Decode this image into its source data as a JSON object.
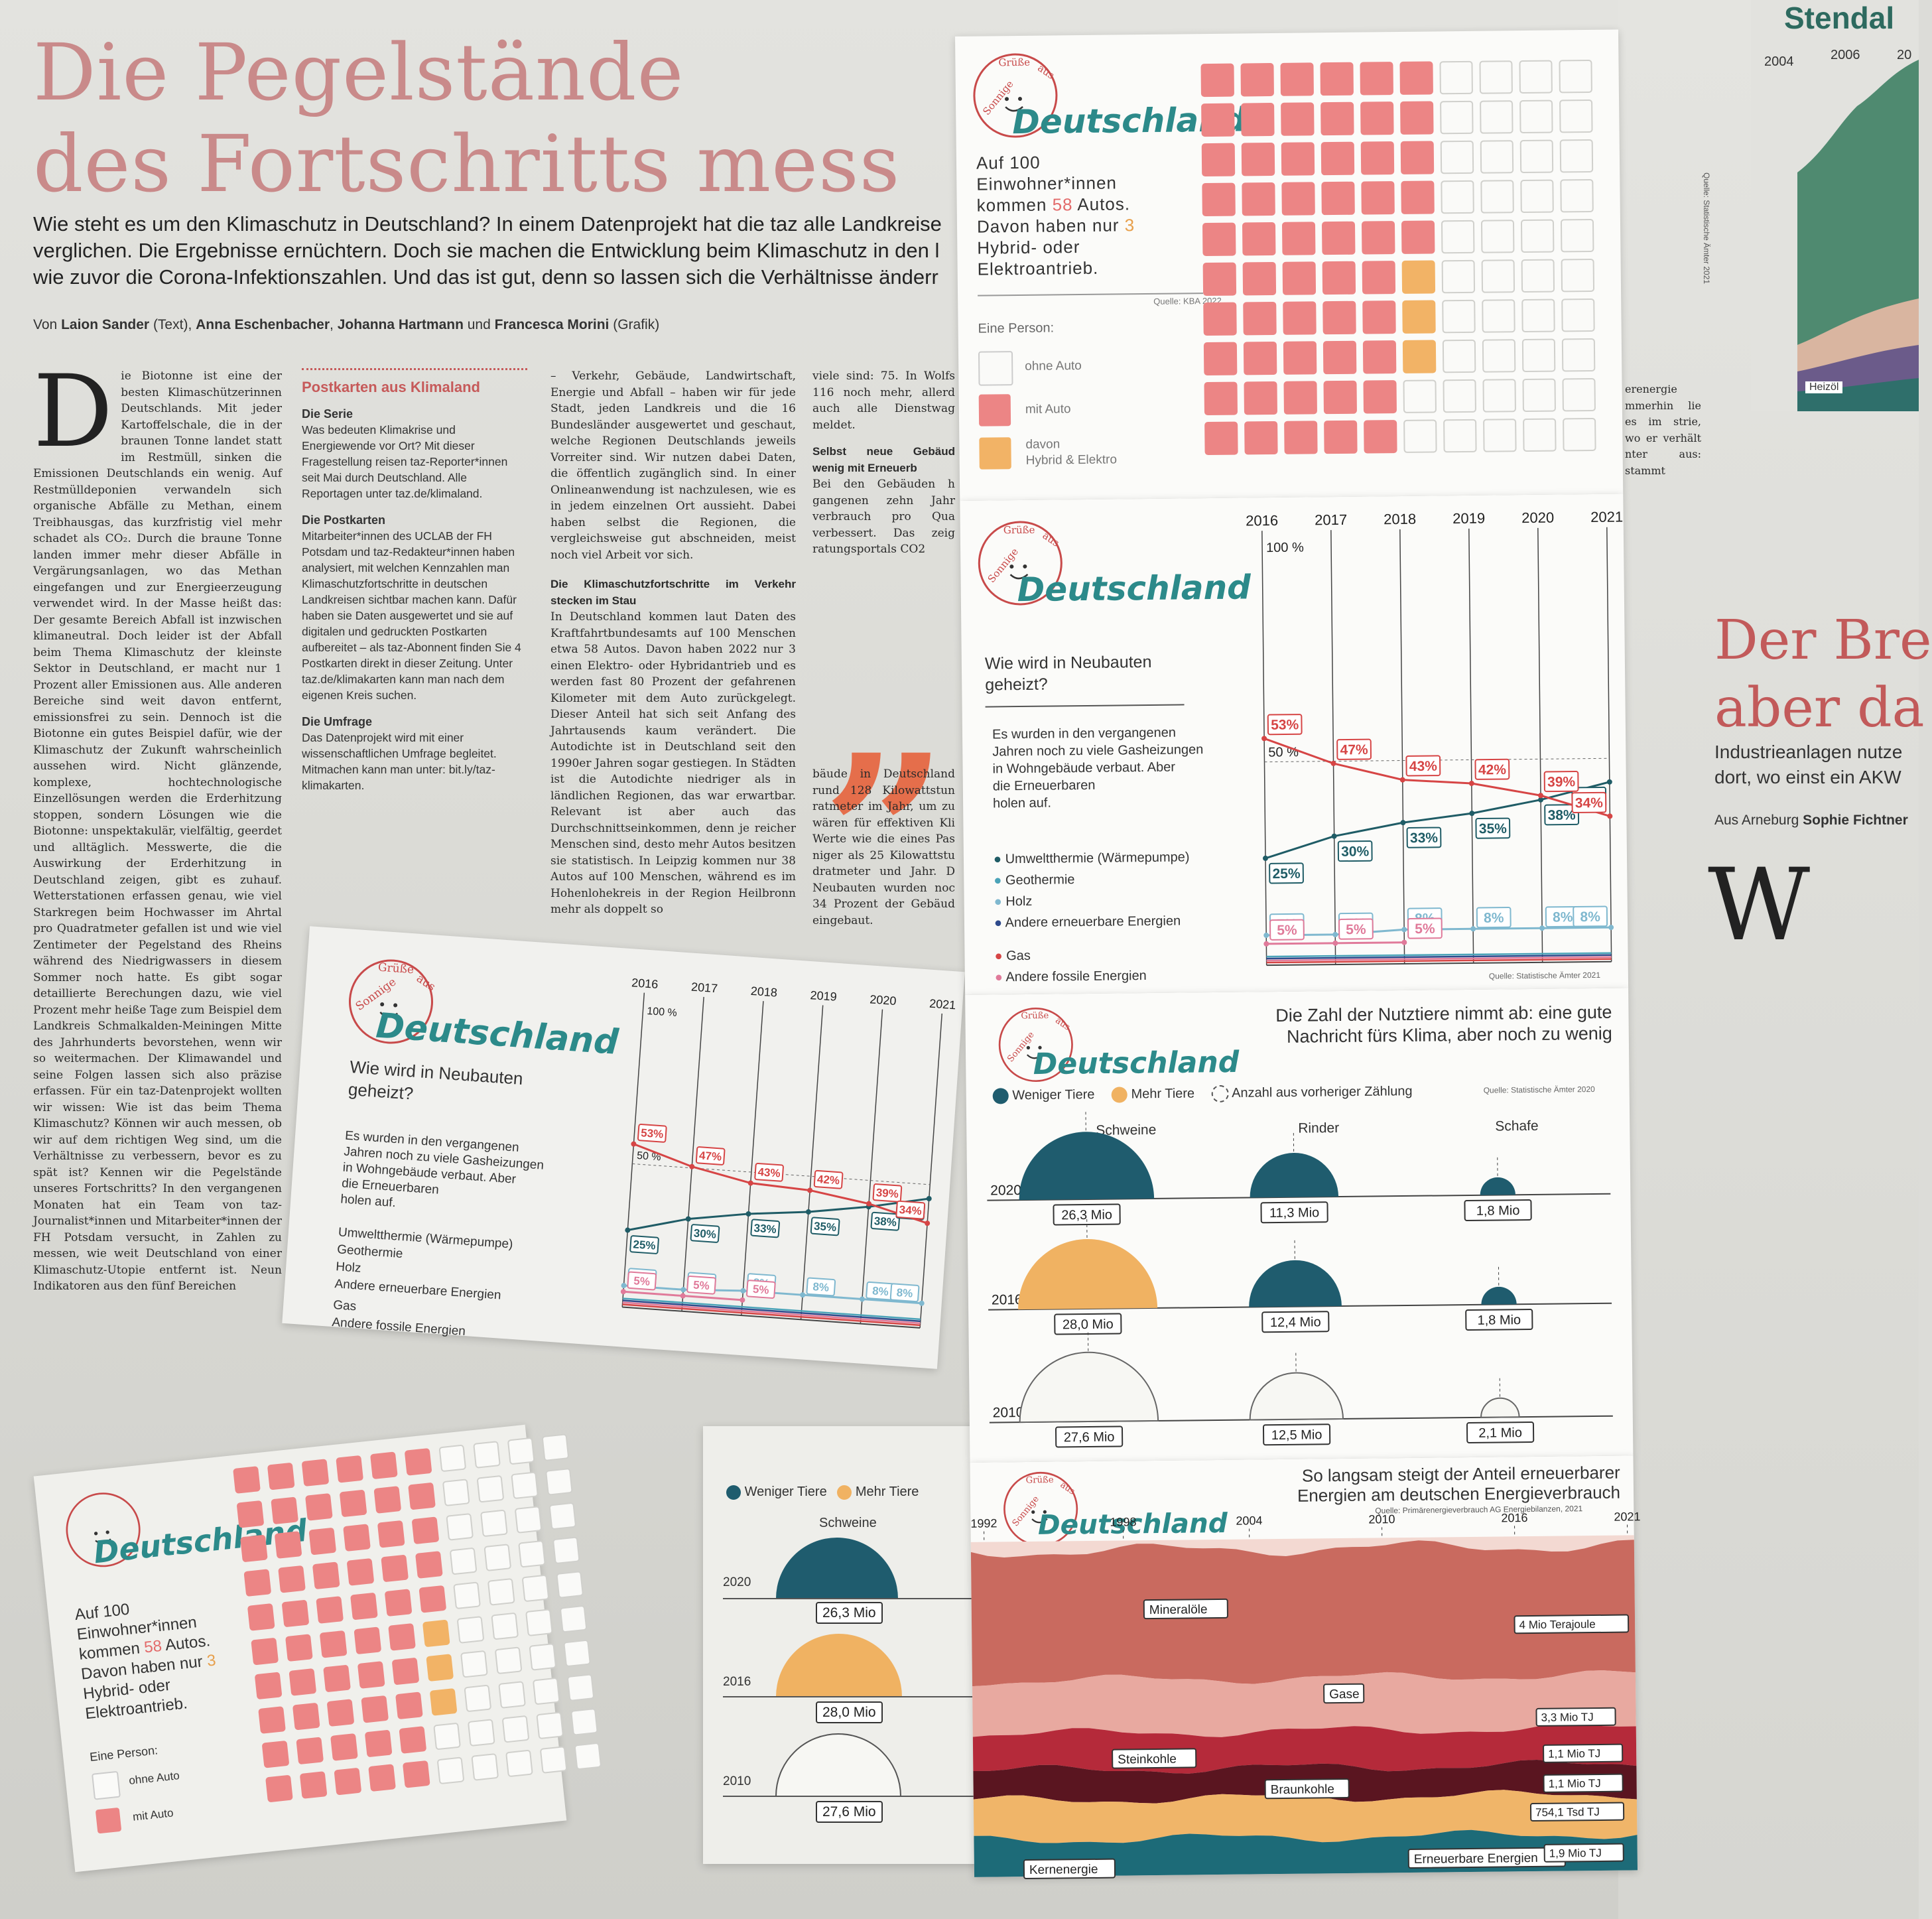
{
  "article": {
    "headline_1": "Die Pegelstände",
    "headline_2": "des Fortschritts mess",
    "lede_1": "Wie steht es um den Klimaschutz in Deutschland? In einem Datenprojekt hat die taz alle Landkreise",
    "lede_2": "verglichen. Die Ergebnisse ernüchtern. Doch sie machen die Entwicklung beim Klimaschutz in den l",
    "lede_3": "wie zuvor die Corona-Infektionszahlen. Und das ist gut, denn so lassen sich die Verhältnisse änderr",
    "byline_prefix": "Von",
    "author_1": "Laion Sander",
    "author_1_role": "(Text),",
    "author_2": "Anna Eschenbacher",
    "author_3": "Johanna Hartmann",
    "and": "und",
    "author_4": "Francesca Morini",
    "author_4_role": "(Grafik)",
    "dropcap": "D",
    "col1_text": "ie Biotonne ist eine der besten Klimaschützerinnen Deutschlands. Mit jeder Kartoffelschale, die in der braunen Tonne landet statt im Restmüll, sinken die Emissionen Deutschlands ein wenig. Auf Restmülldeponien verwandeln sich organische Abfälle zu Methan, einem Treibhausgas, das kurzfristig viel mehr schadet als CO₂. Durch die braune Tonne landen immer mehr dieser Abfälle in Vergärungsanlagen, wo das Methan eingefangen und zur Energieerzeugung verwendet wird. In der Masse heißt das: Der gesamte Bereich Abfall ist inzwischen klimaneutral. Doch leider ist der Abfall beim Thema Klimaschutz der kleinste Sektor in Deutschland, er macht nur 1 Prozent aller Emissionen aus. Alle anderen Bereiche sind weit davon entfernt, emissionsfrei zu sein. Dennoch ist die Biotonne ein gutes Beispiel dafür, wie der Klimaschutz der Zukunft wahrscheinlich aussehen wird. Nicht glänzende, komplexe, hochtechnologische Einzellösungen werden die Erderhitzung stoppen, sondern Lösungen wie die Biotonne: unspektakulär, vielfältig, geerdet und alltäglich. Messwerte, die die Auswirkung der Erderhitzung in Deutschland zeigen, gibt es zuhauf. Wetterstationen erfassen genau, wie viel Starkregen beim Hochwasser im Ahrtal pro Quadratmeter gefallen ist und wie viel Zentimeter der Pegelstand des Rheins während des Niedrigwassers in diesem Sommer noch hatte. Es gibt sogar detaillierte Berechungen dazu, wie viel Prozent mehr heiße Tage zum Beispiel dem Landkreis Schmalkalden-Meiningen Mitte des Jahrhunderts bevorstehen, wenn wir so weitermachen. Der Klimawandel und seine Folgen lassen sich also präzise erfassen. Für ein taz-Datenprojekt wollten wir wissen: Wie ist das beim Thema Klimaschutz? Können wir auch messen, ob wir auf dem richtigen Weg sind, um die Verhältnisse zu verbessern, bevor es zu spät ist? Kennen wir die Pegelstände unseres Fortschritts? In den vergangenen Monaten hat ein Team von taz-Journalist*innen und Mitarbeiter*innen der FH Potsdam versucht, in Zahlen zu messen, wie weit Deutschland von einer Klimaschutz-Utopie entfernt ist. Neun Indikatoren aus den fünf Bereichen",
    "sidebar_title": "Postkarten aus Klimaland",
    "sidebar_h1": "Die Serie",
    "sidebar_p1": "Was bedeuten Klimakrise und Energiewende vor Ort? Mit dieser Fragestellung reisen taz-Reporter*innen seit Mai durch Deutschland. Alle Reportagen unter taz.de/klimaland.",
    "sidebar_h2": "Die Postkarten",
    "sidebar_p2": "Mitarbeiter*innen des UCLAB der FH Potsdam und taz-Redakteur*innen haben analysiert, mit welchen Kennzahlen man Klimaschutzfortschritte in deutschen Landkreisen sichtbar machen kann. Dafür haben sie Daten ausgewertet und sie auf digitalen und gedruckten Postkarten aufbereitet – als taz-Abonnent finden Sie 4 Postkarten direkt in dieser Zeitung. Unter taz.de/klimakarten kann man nach dem eigenen Kreis suchen.",
    "sidebar_h3": "Die Umfrage",
    "sidebar_p3": "Das Datenprojekt wird mit einer wissenschaftlichen Umfrage begleitet. Mitmachen kann man unter: bit.ly/taz-klimakarten.",
    "col3_text": "– Verkehr, Gebäude, Landwirtschaft, Energie und Abfall – haben wir für jede Stadt, jeden Landkreis und die 16 Bundesländer ausgewertet und geschaut, welche Regionen Deutschlands jeweils Vorreiter sind. Wir nutzen dabei Daten, die öffentlich zugänglich sind. In einer Onlineanwendung ist nachzulesen, wie es in jedem einzelnen Ort aussieht. Dabei haben selbst die Regionen, die vergleichsweise gut abschneiden, meist noch viel Arbeit vor sich.",
    "col3_sub": "Die Klimaschutzfortschritte im Verkehr stecken im Stau",
    "col3_text2": "In Deutschland kommen laut Daten des Kraftfahrtbundesamts auf 100 Menschen etwa 58 Autos. Davon haben 2022 nur 3 einen Elektro- oder Hybridantrieb und es werden fast 80 Prozent der gefahrenen Kilometer mit dem Auto zurückgelegt. Dieser Anteil hat sich seit Anfang des Jahrtausends kaum verändert. Die Autodichte ist in Deutschland seit den 1990er Jahren sogar gestiegen. In Städten ist die Autodichte niedriger als in ländlichen Regionen, das war erwartbar. Relevant ist aber auch das Durchschnittseinkommen, denn je reicher Menschen sind, desto mehr Autos besitzen sie statistisch. In Leipzig kommen nur 38 Autos auf 100 Menschen, während es im Hohenlohekreis in der Region Heilbronn mehr als doppelt so",
    "col4_text": "viele sind: 75. In Wolfs 116 noch mehr, allerd auch alle Dienstwag meldet.",
    "col4_sub": "Selbst neue Gebäud wenig mit Erneuerb",
    "col4_text2": "Bei den Gebäuden h gangenen zehn Jahr verbrauch pro Qua verbessert. Das zeig ratungsportals CO2",
    "col4_text3": "bäude in Deutschland rund 128 Kilowattstun ratmeter im Jahr, um zu wären für effektiven Kli Werte wie die eines Pas niger als 25 Kilowattstu dratmeter und Jahr. D Neubauten wurden noc 34 Prozent der Gebäud eingebaut.",
    "quote_glyph": "„",
    "col5_text": "erenergie mmerhin lie es im strie, wo er verhält nter aus: stammt",
    "right_paper_label": "Stendal",
    "right_years": [
      "2004",
      "2006",
      "20"
    ],
    "right_heizoel": "Heizöl",
    "right_source": "Quelle: Statistische Ämter 2021",
    "right_headline_1": "Der Bre",
    "right_headline_2": "aber da",
    "right_lede_1": "Industrieanlagen nutze",
    "right_lede_2": "dort, wo einst ein AKW",
    "right_byline": "Aus Arneburg",
    "right_author": "Sophie Fichtner",
    "right_dropcap": "W"
  },
  "logo": {
    "line1": "Sonnige",
    "line2": "Grüße",
    "line3": "aus",
    "title": "Deutschland"
  },
  "card_cars": {
    "text_1": "Auf 100",
    "text_2": "Einwohner*innen",
    "text_3a": "kommen",
    "text_3b": "58",
    "text_3c": "Autos.",
    "text_4a": "Davon haben nur",
    "text_4b": "3",
    "text_5": "Hybrid- oder",
    "text_6": "Elektroantrieb.",
    "source": "Quelle: KBA 2022",
    "legend_title": "Eine Person:",
    "legend_none": "ohne Auto",
    "legend_car": "mit Auto",
    "legend_hybrid_1": "davon",
    "legend_hybrid_2": "Hybrid & Elektro",
    "colors": {
      "car": "#ec8585",
      "hybrid": "#f2b366",
      "none": "#fafaf8"
    }
  },
  "card_heating": {
    "title_1": "Wie wird in Neubauten",
    "title_2": "geheizt?",
    "text_1": "Es wurden in den vergangenen",
    "text_2": "Jahren noch zu viele Gasheizungen",
    "text_3": "in Wohngebäude verbaut. Aber",
    "text_4": "die Erneuerbaren",
    "text_5": "holen auf.",
    "legend": [
      "Umweltthermie (Wärmepumpe)",
      "Geothermie",
      "Holz",
      "Andere erneuerbare Energien",
      "Gas",
      "Andere fossile Energien"
    ],
    "source": "Quelle: Statistische Ämter 2021",
    "label_100": "100 %",
    "label_50": "50 %"
  },
  "chart_data": [
    {
      "type": "line",
      "title": "Wie wird in Neubauten geheizt?",
      "x": [
        "2016",
        "2017",
        "2018",
        "2019",
        "2020",
        "2021"
      ],
      "ylim": [
        0,
        100
      ],
      "series": [
        {
          "name": "Umweltthermie (Wärmepumpe)",
          "color": "#1f5c66",
          "values": [
            25,
            30,
            33,
            35,
            38,
            42
          ]
        },
        {
          "name": "Holz",
          "color": "#7fb8cf",
          "values": [
            7,
            7,
            8,
            8,
            8,
            8
          ]
        },
        {
          "name": "Geothermie",
          "color": "#4aa3b8",
          "values": [
            null,
            null,
            null,
            null,
            null,
            null
          ]
        },
        {
          "name": "Andere erneuerbare Energien",
          "color": "#2e4a8c",
          "values": [
            null,
            null,
            null,
            null,
            null,
            null
          ]
        },
        {
          "name": "Gas",
          "color": "#d64545",
          "values": [
            53,
            47,
            43,
            42,
            39,
            34
          ]
        },
        {
          "name": "Andere fossile Energien",
          "color": "#e07a9a",
          "values": [
            5,
            5,
            5,
            null,
            null,
            null
          ]
        }
      ]
    },
    {
      "type": "bar",
      "title": "Die Zahl der Nutztiere nimmt ab: eine gute Nachricht fürs Klima, aber noch zu wenig",
      "categories": [
        "Schweine",
        "Rinder",
        "Schafe"
      ],
      "series": [
        {
          "name": "2020",
          "values": [
            26.3,
            11.3,
            1.8
          ]
        },
        {
          "name": "2016",
          "values": [
            28.0,
            12.4,
            1.8
          ]
        },
        {
          "name": "2010",
          "values": [
            27.6,
            12.5,
            2.1
          ]
        }
      ]
    },
    {
      "type": "area",
      "title": "So langsam steigt der Anteil erneuerbarer Energien am deutschen Energieverbrauch",
      "x": [
        "1992",
        "1998",
        "2004",
        "2010",
        "2016",
        "2021"
      ],
      "series": [
        {
          "name": "Mineralöle",
          "color": "#c96a5f"
        },
        {
          "name": "Gase",
          "color": "#e8a9a0"
        },
        {
          "name": "Steinkohle",
          "color": "#b52a3a"
        },
        {
          "name": "Braunkohle",
          "color": "#5a1520"
        },
        {
          "name": "Kernenergie",
          "color": "#f0b569"
        },
        {
          "name": "Erneuerbare Energien",
          "color": "#1d6b78"
        }
      ]
    }
  ],
  "card_animals": {
    "title_1": "Die Zahl der Nutztiere nimmt ab: eine gute",
    "title_2": "Nachricht fürs Klima, aber noch zu wenig",
    "legend_less": "Weniger Tiere",
    "legend_more": "Mehr Tiere",
    "legend_prev": "Anzahl aus vorheriger Zählung",
    "source": "Quelle: Statistische Ämter 2020",
    "years": [
      "2020",
      "2016",
      "2010"
    ],
    "animals": [
      "Schweine",
      "Rinder",
      "Schafe"
    ],
    "values": [
      [
        "26,3 Mio",
        "11,3 Mio",
        "1,8 Mio"
      ],
      [
        "28,0 Mio",
        "12,4 Mio",
        "1,8 Mio"
      ],
      [
        "27,6 Mio",
        "12,5 Mio",
        "2,1 Mio"
      ]
    ],
    "colors": {
      "less": "#1f5c6e",
      "more": "#f0b262"
    }
  },
  "card_energy": {
    "title_1": "So langsam steigt der Anteil erneuerbarer",
    "title_2": "Energien am deutschen Energieverbrauch",
    "source": "Quelle: Primärenergieverbrauch AG Energiebilanzen, 2021",
    "years": [
      "1992",
      "1998",
      "2004",
      "2010",
      "2016",
      "2021"
    ],
    "labels": [
      "Mineralöle",
      "Gase",
      "Steinkohle",
      "Braunkohle",
      "Kernenergie",
      "Erneuerbare Energien"
    ],
    "values": [
      "4 Mio Terajoule",
      "3,3 Mio TJ",
      "1,1 Mio TJ",
      "1,1 Mio TJ",
      "754,1 Tsd TJ",
      "1,9 Mio TJ"
    ]
  }
}
